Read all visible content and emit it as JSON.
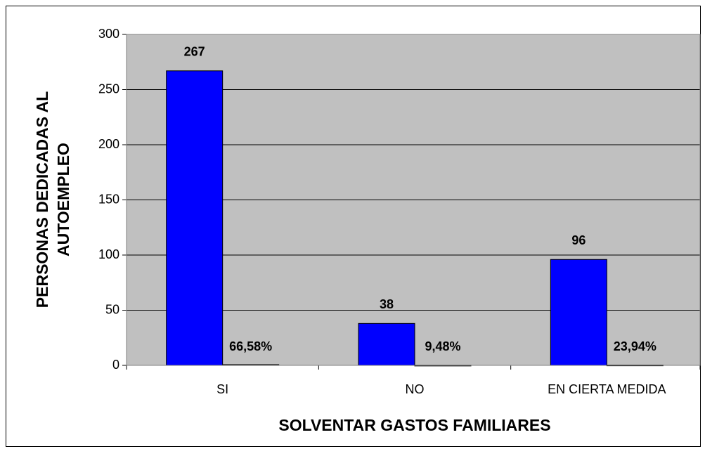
{
  "chart_data": {
    "type": "bar",
    "xlabel": "SOLVENTAR GASTOS FAMILIARES",
    "ylabel": [
      "PERSONAS DEDICADAS AL",
      "AUTOEMPLEO"
    ],
    "categories": [
      "SI",
      "NO",
      "EN CIERTA MEDIDA"
    ],
    "series": [
      {
        "color": "#0000ff",
        "values": [
          267,
          38,
          96
        ]
      },
      {
        "color": "#1a1a1a",
        "values": [
          0.6658,
          0.0948,
          0.2394
        ],
        "value_labels": [
          "66,58%",
          "9,48%",
          "23,94%"
        ]
      }
    ],
    "ylim": [
      0,
      300
    ],
    "yticks": [
      0,
      50,
      100,
      150,
      200,
      250,
      300
    ],
    "grid": true,
    "plot_background": "#c0c0c0"
  }
}
